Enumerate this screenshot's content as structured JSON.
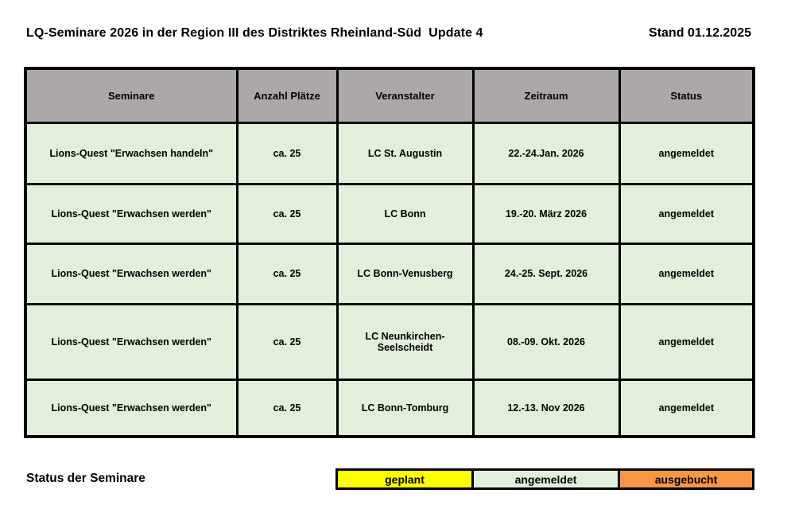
{
  "header": {
    "title": "LQ-Seminare 2026 in der Region III des Distriktes Rheinland-Süd  Update 4",
    "stand": "Stand 01.12.2025"
  },
  "table": {
    "headers": [
      "Seminare",
      "Anzahl Plätze",
      "Veranstalter",
      "Zeitraum",
      "Status"
    ],
    "rows": [
      [
        "Lions-Quest \"Erwachsen handeln\"",
        "ca. 25",
        "LC St. Augustin",
        "22.-24.Jan. 2026",
        "angemeldet"
      ],
      [
        "Lions-Quest \"Erwachsen werden\"",
        "ca. 25",
        "LC Bonn",
        "19.-20. März 2026",
        "angemeldet"
      ],
      [
        "Lions-Quest \"Erwachsen werden\"",
        "ca. 25",
        "LC Bonn-Venusberg",
        "24.-25. Sept. 2026",
        "angemeldet"
      ],
      [
        "Lions-Quest \"Erwachsen werden\"",
        "ca. 25",
        "LC Neunkirchen-Seelscheidt",
        "08.-09. Okt. 2026",
        "angemeldet"
      ],
      [
        "Lions-Quest \"Erwachsen werden\"",
        "ca. 25",
        "LC Bonn-Tomburg",
        "12.-13. Nov 2026",
        "angemeldet"
      ]
    ]
  },
  "legend": {
    "label": "Status der Seminare",
    "items": [
      {
        "label": "geplant",
        "color": "#ffff00"
      },
      {
        "label": "angemeldet",
        "color": "#e2efda"
      },
      {
        "label": "ausgebucht",
        "color": "#f79646"
      }
    ]
  },
  "colors": {
    "header_bg": "#aca8a7",
    "row_bg": "#e2efda",
    "border": "#000000",
    "page_bg": "#ffffff"
  }
}
